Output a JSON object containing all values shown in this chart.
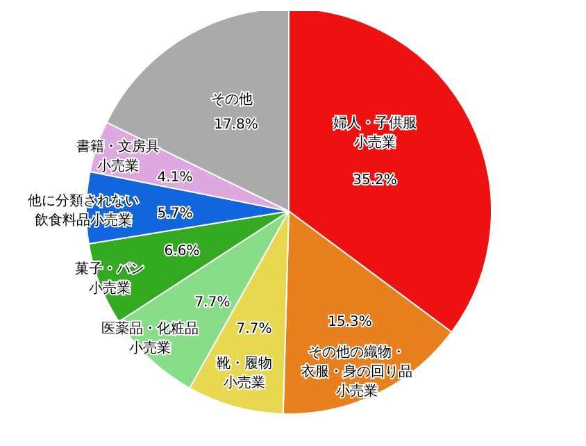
{
  "chart_data": {
    "type": "pie",
    "categories": [
      "婦人・子供服小売業",
      "その他の織物・衣服・身の回り品小売業",
      "靴・履物小売業",
      "医薬品・化粧品小売業",
      "菓子・パン小売業",
      "他に分類されない飲食料品小売業",
      "書籍・文房具小売業",
      "その他"
    ],
    "values": [
      35.2,
      15.3,
      7.7,
      7.7,
      6.6,
      5.7,
      4.1,
      17.8
    ],
    "value_labels": [
      "35.2%",
      "15.3%",
      "7.7%",
      "7.7%",
      "6.6%",
      "5.7%",
      "4.1%",
      "17.8%"
    ],
    "colors": [
      "#ee1111",
      "#e8801e",
      "#e8d850",
      "#88dd88",
      "#33aa22",
      "#1166dd",
      "#dda8e0",
      "#aaaaaa"
    ],
    "legend": false
  }
}
